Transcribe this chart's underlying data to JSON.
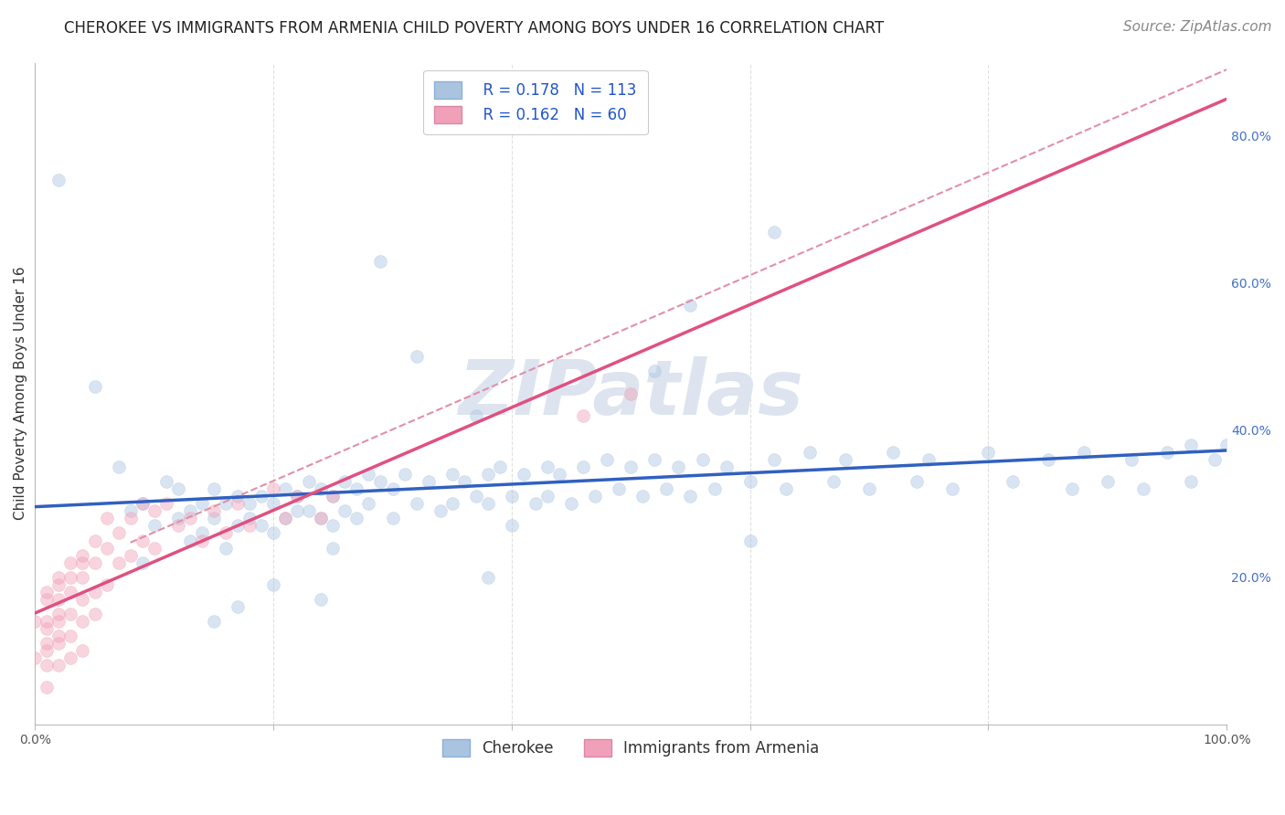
{
  "title": "CHEROKEE VS IMMIGRANTS FROM ARMENIA CHILD POVERTY AMONG BOYS UNDER 16 CORRELATION CHART",
  "source": "Source: ZipAtlas.com",
  "ylabel": "Child Poverty Among Boys Under 16",
  "xlim": [
    0,
    1
  ],
  "ylim": [
    0,
    0.9
  ],
  "ytick_labels_right": [
    "20.0%",
    "40.0%",
    "60.0%",
    "80.0%"
  ],
  "yticks_right": [
    0.2,
    0.4,
    0.6,
    0.8
  ],
  "legend_r1": "R = 0.178",
  "legend_n1": "N = 113",
  "legend_r2": "R = 0.162",
  "legend_n2": "N = 60",
  "cherokee_color": "#aac4e0",
  "armenia_color": "#f0a0b8",
  "cherokee_line_color": "#3060c0",
  "armenia_line_color": "#e05080",
  "dashed_line_color": "#e090a8",
  "watermark": "ZIPatlas",
  "watermark_color": "#dde4ef",
  "background_color": "#ffffff",
  "grid_color": "#e0e0e0",
  "cherokee_x": [
    0.02,
    0.05,
    0.07,
    0.08,
    0.09,
    0.1,
    0.11,
    0.12,
    0.12,
    0.13,
    0.13,
    0.14,
    0.14,
    0.15,
    0.15,
    0.16,
    0.16,
    0.17,
    0.17,
    0.18,
    0.18,
    0.19,
    0.19,
    0.2,
    0.2,
    0.21,
    0.21,
    0.22,
    0.22,
    0.23,
    0.23,
    0.24,
    0.24,
    0.25,
    0.25,
    0.26,
    0.26,
    0.27,
    0.27,
    0.28,
    0.28,
    0.29,
    0.3,
    0.3,
    0.31,
    0.32,
    0.33,
    0.34,
    0.35,
    0.35,
    0.36,
    0.37,
    0.38,
    0.38,
    0.39,
    0.4,
    0.4,
    0.41,
    0.42,
    0.43,
    0.43,
    0.44,
    0.45,
    0.46,
    0.47,
    0.48,
    0.49,
    0.5,
    0.51,
    0.52,
    0.53,
    0.54,
    0.55,
    0.56,
    0.57,
    0.58,
    0.6,
    0.62,
    0.63,
    0.65,
    0.67,
    0.68,
    0.7,
    0.72,
    0.74,
    0.75,
    0.77,
    0.8,
    0.82,
    0.85,
    0.87,
    0.88,
    0.9,
    0.92,
    0.93,
    0.95,
    0.97,
    0.97,
    0.99,
    1.0,
    0.29,
    0.32,
    0.52,
    0.55,
    0.62,
    0.37,
    0.25,
    0.2,
    0.17,
    0.09,
    0.6,
    0.38,
    0.15,
    0.24
  ],
  "cherokee_y": [
    0.74,
    0.46,
    0.35,
    0.29,
    0.3,
    0.27,
    0.33,
    0.28,
    0.32,
    0.25,
    0.29,
    0.3,
    0.26,
    0.32,
    0.28,
    0.3,
    0.24,
    0.31,
    0.27,
    0.3,
    0.28,
    0.31,
    0.27,
    0.3,
    0.26,
    0.32,
    0.28,
    0.31,
    0.29,
    0.33,
    0.29,
    0.32,
    0.28,
    0.31,
    0.27,
    0.33,
    0.29,
    0.32,
    0.28,
    0.34,
    0.3,
    0.33,
    0.32,
    0.28,
    0.34,
    0.3,
    0.33,
    0.29,
    0.34,
    0.3,
    0.33,
    0.31,
    0.34,
    0.3,
    0.35,
    0.31,
    0.27,
    0.34,
    0.3,
    0.35,
    0.31,
    0.34,
    0.3,
    0.35,
    0.31,
    0.36,
    0.32,
    0.35,
    0.31,
    0.36,
    0.32,
    0.35,
    0.31,
    0.36,
    0.32,
    0.35,
    0.33,
    0.36,
    0.32,
    0.37,
    0.33,
    0.36,
    0.32,
    0.37,
    0.33,
    0.36,
    0.32,
    0.37,
    0.33,
    0.36,
    0.32,
    0.37,
    0.33,
    0.36,
    0.32,
    0.37,
    0.33,
    0.38,
    0.36,
    0.38,
    0.63,
    0.5,
    0.48,
    0.57,
    0.67,
    0.42,
    0.24,
    0.19,
    0.16,
    0.22,
    0.25,
    0.2,
    0.14,
    0.17
  ],
  "armenia_x": [
    0.0,
    0.0,
    0.01,
    0.01,
    0.01,
    0.01,
    0.01,
    0.01,
    0.01,
    0.01,
    0.02,
    0.02,
    0.02,
    0.02,
    0.02,
    0.02,
    0.02,
    0.02,
    0.03,
    0.03,
    0.03,
    0.03,
    0.03,
    0.03,
    0.04,
    0.04,
    0.04,
    0.04,
    0.04,
    0.04,
    0.05,
    0.05,
    0.05,
    0.05,
    0.06,
    0.06,
    0.06,
    0.07,
    0.07,
    0.08,
    0.08,
    0.09,
    0.09,
    0.1,
    0.1,
    0.11,
    0.12,
    0.13,
    0.14,
    0.15,
    0.16,
    0.17,
    0.18,
    0.2,
    0.21,
    0.22,
    0.24,
    0.25,
    0.46,
    0.5
  ],
  "armenia_y": [
    0.14,
    0.09,
    0.18,
    0.14,
    0.11,
    0.08,
    0.05,
    0.17,
    0.13,
    0.1,
    0.2,
    0.17,
    0.14,
    0.11,
    0.08,
    0.19,
    0.15,
    0.12,
    0.22,
    0.18,
    0.15,
    0.12,
    0.09,
    0.2,
    0.23,
    0.2,
    0.17,
    0.14,
    0.1,
    0.22,
    0.25,
    0.22,
    0.18,
    0.15,
    0.28,
    0.24,
    0.19,
    0.26,
    0.22,
    0.28,
    0.23,
    0.3,
    0.25,
    0.29,
    0.24,
    0.3,
    0.27,
    0.28,
    0.25,
    0.29,
    0.26,
    0.3,
    0.27,
    0.32,
    0.28,
    0.31,
    0.28,
    0.31,
    0.42,
    0.45
  ],
  "title_fontsize": 12,
  "source_fontsize": 11,
  "axis_fontsize": 11,
  "tick_fontsize": 10,
  "legend_fontsize": 12,
  "marker_size": 100,
  "marker_alpha": 0.45,
  "line_width": 2.5
}
